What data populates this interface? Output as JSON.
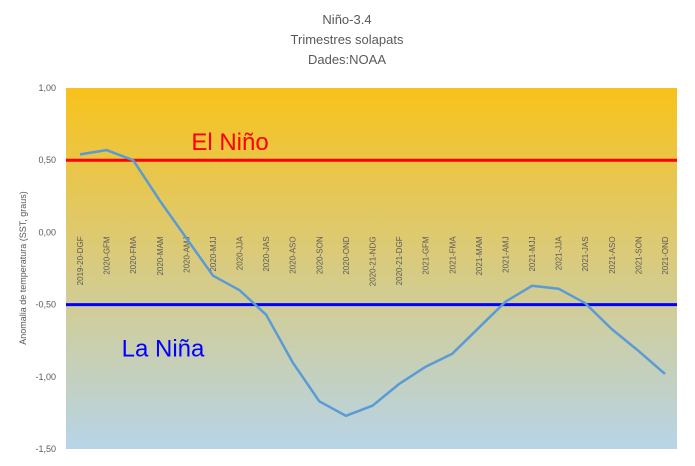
{
  "chart_data": {
    "type": "line",
    "title": [
      "Niño-3.4",
      "Trimestres solapats",
      "Dades:NOAA"
    ],
    "ylabel": "Anomalia de temperatura (SST, graus)",
    "xlabel": "",
    "ylim": [
      -1.5,
      1.0
    ],
    "yticks": [
      "1,00",
      "0,50",
      "0,00",
      "-0,50",
      "-1,00",
      "-1,50"
    ],
    "ytick_values": [
      1.0,
      0.5,
      0.0,
      -0.5,
      -1.0,
      -1.5
    ],
    "categories": [
      "2019-20-DGF",
      "2020-GFM",
      "2020-FMA",
      "2020-MAM",
      "2020-AMJ",
      "2020-MJJ",
      "2020-JJA",
      "2020-JAS",
      "2020-ASO",
      "2020-SON",
      "2020-OND",
      "2020-21-NDG",
      "2020-21-DGF",
      "2021-GFM",
      "2021-FMA",
      "2021-MAM",
      "2021-AMJ",
      "2021-MJJ",
      "2021-JJA",
      "2021-JAS",
      "2021-ASO",
      "2021-SON",
      "2021-OND"
    ],
    "series": [
      {
        "values": [
          0.54,
          0.57,
          0.5,
          0.22,
          -0.04,
          -0.3,
          -0.4,
          -0.57,
          -0.9,
          -1.17,
          -1.27,
          -1.2,
          -1.05,
          -0.93,
          -0.84,
          -0.66,
          -0.48,
          -0.37,
          -0.39,
          -0.49,
          -0.67,
          -0.82,
          -0.98
        ],
        "color": "#5b9bd5"
      }
    ],
    "thresholds": [
      {
        "label": "El Niño",
        "value": 0.5,
        "color": "#ff0000"
      },
      {
        "label": "La Niña",
        "value": -0.5,
        "color": "#0000ff"
      }
    ],
    "background_gradient": [
      "#f8c21b",
      "#b7d4e8"
    ],
    "grid": false,
    "legend": "none"
  }
}
